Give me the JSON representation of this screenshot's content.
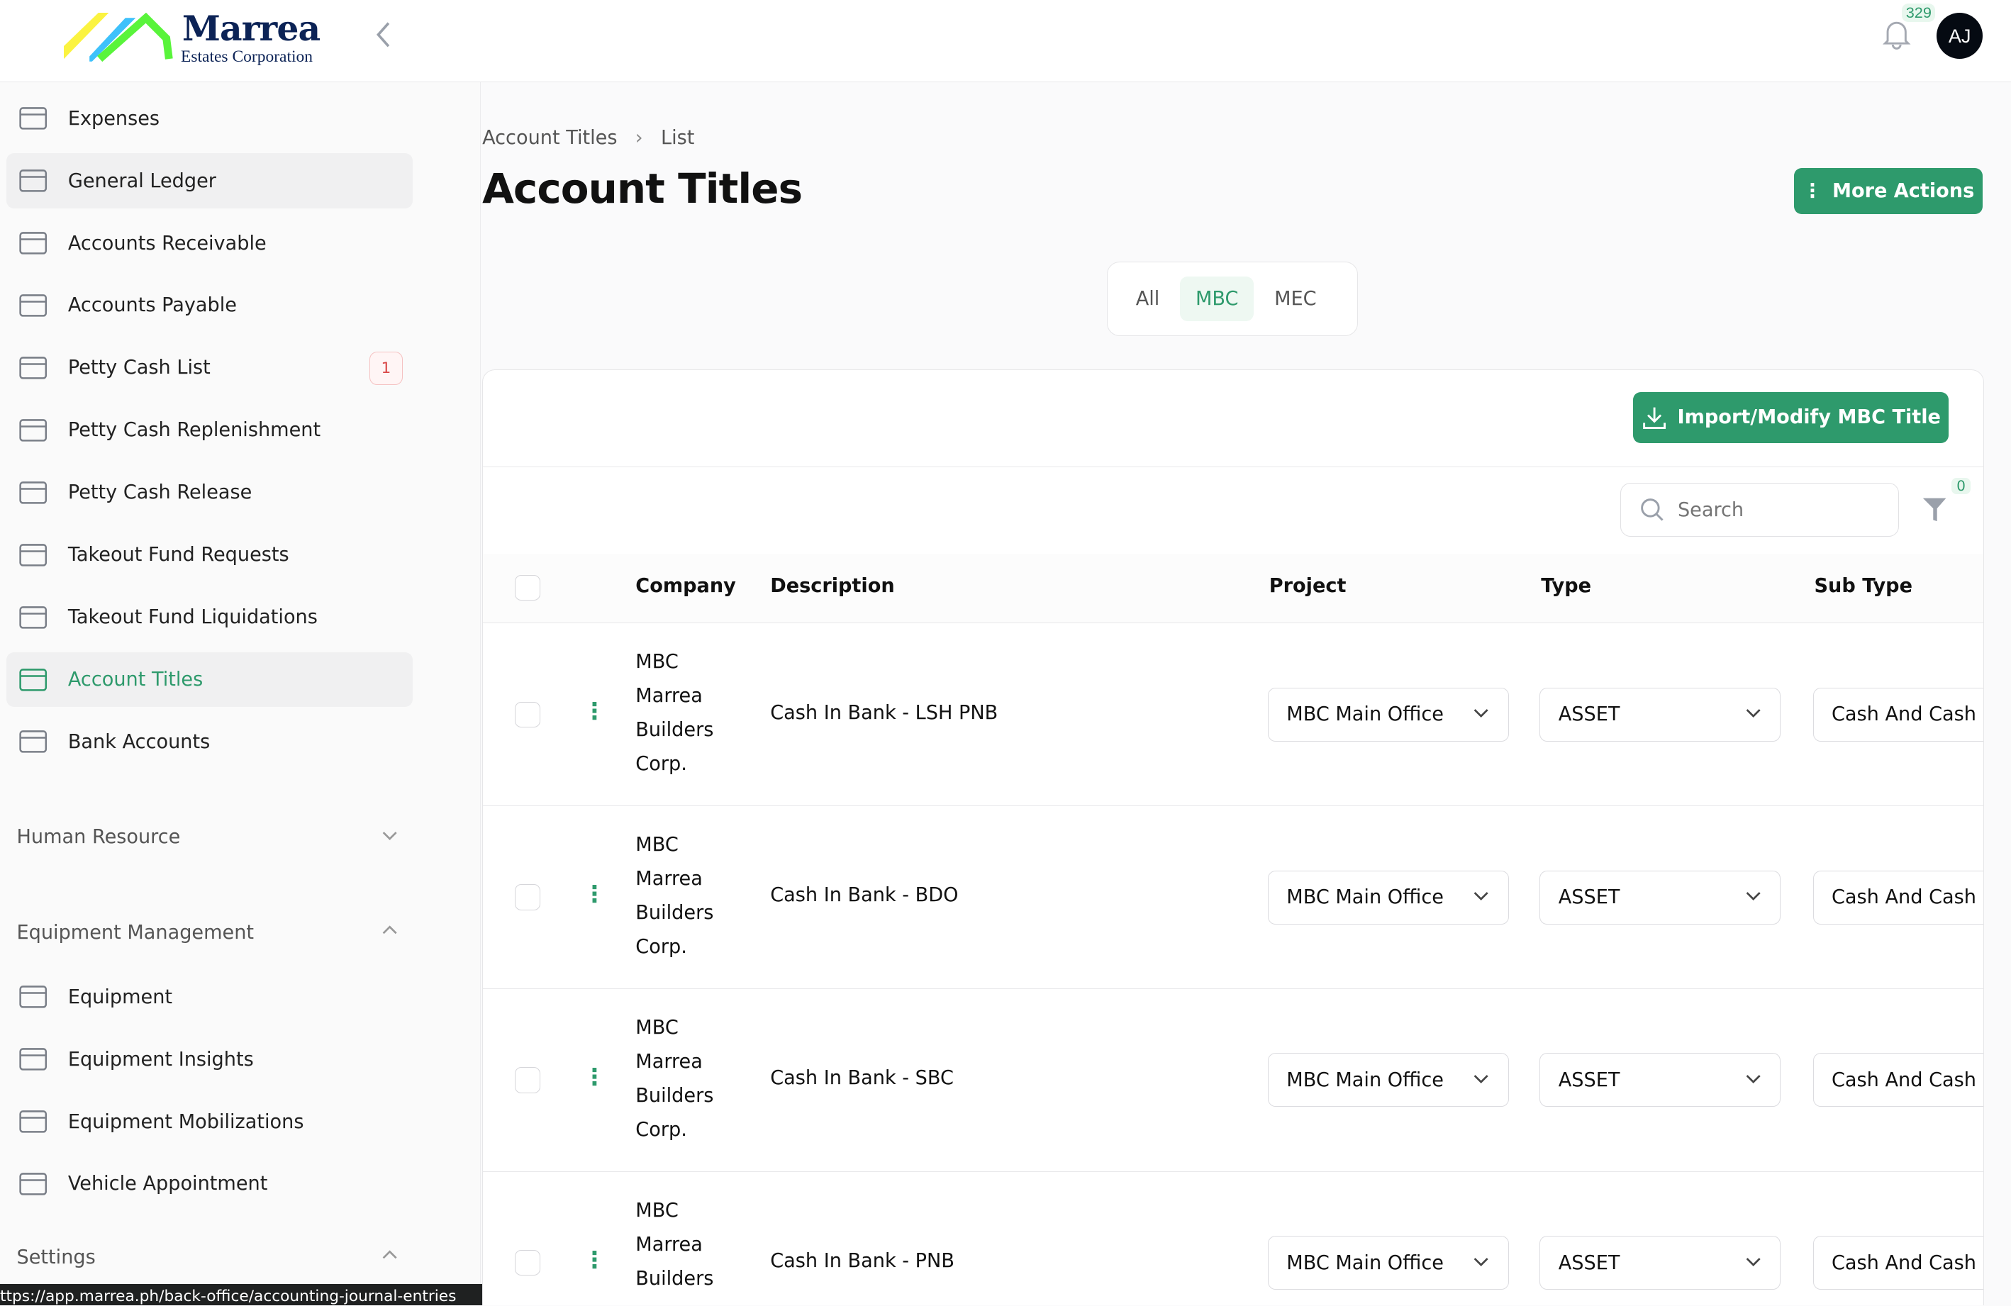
{
  "header": {
    "brand": "Marrea",
    "brand_sub": "Estates Corporation",
    "notification_count": "329",
    "avatar_initials": "AJ"
  },
  "sidebar": {
    "items": [
      {
        "label": "Expenses",
        "icon": "wallet-icon"
      },
      {
        "label": "General Ledger",
        "icon": "edit-icon",
        "active": true
      },
      {
        "label": "Accounts Receivable",
        "icon": "money-icon"
      },
      {
        "label": "Accounts Payable",
        "icon": "hand-money-icon"
      },
      {
        "label": "Petty Cash List",
        "icon": "cash-icon",
        "badge": "1"
      },
      {
        "label": "Petty Cash Replenishment",
        "icon": "cash-refresh-icon"
      },
      {
        "label": "Petty Cash Release",
        "icon": "cash-icon"
      },
      {
        "label": "Takeout Fund Requests",
        "icon": "home-search-icon"
      },
      {
        "label": "Takeout Fund Liquidations",
        "icon": "clipboard-check-icon"
      },
      {
        "label": "Account Titles",
        "icon": "list-icon",
        "active": true,
        "selected": true
      },
      {
        "label": "Bank Accounts",
        "icon": "bank-icon"
      }
    ],
    "sections": [
      {
        "label": "Human Resource",
        "expanded": false
      },
      {
        "label": "Equipment Management",
        "expanded": true
      },
      {
        "label": "Settings",
        "expanded": true
      }
    ],
    "equipment_items": [
      {
        "label": "Equipment",
        "icon": "truck-icon"
      },
      {
        "label": "Equipment Insights",
        "icon": "chart-sparkle-icon"
      },
      {
        "label": "Equipment Mobilizations",
        "icon": "tools-icon"
      },
      {
        "label": "Vehicle Appointment",
        "icon": "calendar-icon"
      }
    ]
  },
  "status_url": "ttps://app.marrea.ph/back-office/accounting-journal-entries",
  "page": {
    "breadcrumb": [
      "Account Titles",
      "List"
    ],
    "title": "Account Titles",
    "more_actions": "More Actions",
    "tabs": [
      {
        "label": "All"
      },
      {
        "label": "MBC",
        "active": true
      },
      {
        "label": "MEC"
      }
    ],
    "import_button": "Import/Modify MBC Title",
    "search_placeholder": "Search",
    "filter_count": "0"
  },
  "table": {
    "columns": [
      "Company",
      "Description",
      "Project",
      "Type",
      "Sub Type"
    ],
    "rows": [
      {
        "company": "MBC Marrea Builders Corp.",
        "description": "Cash In Bank - LSH PNB",
        "project": "MBC Main Office",
        "type": "ASSET",
        "sub_type": "Cash And Cash"
      },
      {
        "company": "MBC Marrea Builders Corp.",
        "description": "Cash In Bank - BDO",
        "project": "MBC Main Office",
        "type": "ASSET",
        "sub_type": "Cash And Cash"
      },
      {
        "company": "MBC Marrea Builders Corp.",
        "description": "Cash In Bank - SBC",
        "project": "MBC Main Office",
        "type": "ASSET",
        "sub_type": "Cash And Cash"
      },
      {
        "company": "MBC Marrea Builders",
        "description": "Cash In Bank - PNB",
        "project": "MBC Main Office",
        "type": "ASSET",
        "sub_type": "Cash And Cash"
      }
    ]
  },
  "colors": {
    "accent": "#2e9a6c",
    "brand_navy": "#0c2356",
    "badge_red": "#d94848"
  }
}
